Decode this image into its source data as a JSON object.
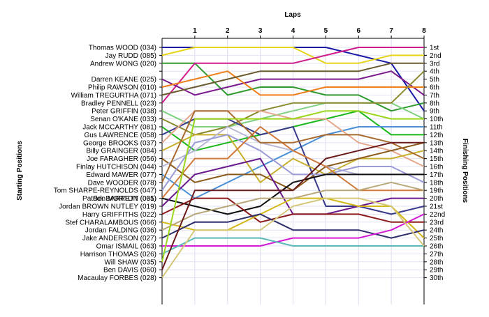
{
  "chart_data": {
    "type": "line",
    "title": "Laps",
    "ylabel_left": "Starting Positions",
    "ylabel_right": "Finishing Positions",
    "x": [
      0,
      1,
      2,
      3,
      4,
      5,
      6,
      7,
      8
    ],
    "x_tick_labels": [
      "1",
      "2",
      "3",
      "4",
      "5",
      "6",
      "7",
      "8"
    ],
    "finish_tick_labels": [
      "1st",
      "2nd",
      "3rd",
      "4th",
      "5th",
      "6th",
      "7th",
      "8th",
      "9th",
      "10th",
      "11th",
      "12th",
      "13th",
      "14th",
      "15th",
      "16th",
      "17th",
      "18th",
      "19th",
      "20th",
      "21st",
      "22nd",
      "23rd",
      "24th",
      "25th",
      "26th",
      "27th",
      "28th",
      "29th",
      "30th"
    ],
    "y_range": [
      1,
      30
    ],
    "grid": true,
    "series": [
      {
        "name": "Thomas WOOD (034)",
        "color": "#1a1aa6",
        "positions": [
          1,
          1,
          1,
          1,
          1,
          1,
          2,
          3,
          9
        ]
      },
      {
        "name": "Jay RUDD (085)",
        "color": "#e6d51a",
        "positions": [
          2,
          1,
          1,
          1,
          1,
          3,
          3,
          2,
          2
        ]
      },
      {
        "name": "Andrew WONG (020)",
        "color": "#2e9a2e",
        "positions": [
          3,
          3,
          7,
          6,
          6,
          7,
          7,
          9,
          8
        ]
      },
      {
        "name": "Bradley PENNELL (023)",
        "color": "#d11a8c",
        "positions": [
          8,
          3,
          3,
          3,
          3,
          2,
          1,
          1,
          1
        ]
      },
      {
        "name": "Darren KEANE (025)",
        "color": "#7a1a8c",
        "positions": [
          5,
          7,
          6,
          5,
          5,
          5,
          5,
          4,
          7
        ]
      },
      {
        "name": "Philip RAWSON (010)",
        "color": "#ee7f1a",
        "positions": [
          6,
          5,
          4,
          7,
          7,
          6,
          6,
          6,
          6
        ]
      },
      {
        "name": "William TREGURTHA (071)",
        "color": "#6b5a2e",
        "positions": [
          7,
          6,
          5,
          4,
          4,
          4,
          4,
          3,
          3
        ]
      },
      {
        "name": "Peter GRIFFIN (038)",
        "color": "#7fd07f",
        "positions": [
          9,
          11,
          11,
          10,
          9,
          8,
          8,
          8,
          10
        ]
      },
      {
        "name": "Senan O'KANE (033)",
        "color": "#8a8a2e",
        "positions": [
          10,
          12,
          11,
          9,
          8,
          8,
          8,
          8,
          4
        ]
      },
      {
        "name": "Jack MCCARTHY (081)",
        "color": "#1ab81a",
        "positions": [
          11,
          14,
          13,
          12,
          11,
          10,
          9,
          12,
          12
        ]
      },
      {
        "name": "Edward MAWER (077)",
        "color": "#4a90d6",
        "positions": [
          17,
          20,
          18,
          16,
          14,
          12,
          11,
          11,
          11
        ]
      },
      {
        "name": "Gus LAWRENCE (058)",
        "color": "#3a3a8c",
        "positions": [
          12,
          10,
          10,
          12,
          11,
          21,
          21,
          22,
          21
        ]
      },
      {
        "name": "George BROOKS (037)",
        "color": "#e6a88c",
        "positions": [
          13,
          9,
          9,
          9,
          10,
          10,
          13,
          14,
          16
        ]
      },
      {
        "name": "Billy GRAINGER (084)",
        "color": "#c8b02e",
        "positions": [
          14,
          12,
          12,
          18,
          15,
          17,
          15,
          15,
          14
        ]
      },
      {
        "name": "Joe FARAGHER (056)",
        "color": "#8c5a1a",
        "positions": [
          15,
          18,
          17,
          17,
          19,
          16,
          15,
          14,
          13
        ]
      },
      {
        "name": "Finlay HUTCHISON (044)",
        "color": "#b8b8d6",
        "positions": [
          16,
          14,
          11,
          13,
          14,
          16,
          17,
          17,
          17
        ]
      },
      {
        "name": "Tom SHARPE-REYNOLDS (047)",
        "color": "#9a9ad6",
        "positions": [
          19,
          13,
          12,
          14,
          17,
          17,
          16,
          16,
          18
        ]
      },
      {
        "name": "Patrick BARRETT (031)",
        "color": "#d07a3a",
        "positions": [
          20,
          15,
          15,
          11,
          14,
          16,
          19,
          19,
          19
        ]
      },
      {
        "name": "Dave WOODER (078)",
        "color": "#a86a2e",
        "positions": [
          18,
          9,
          9,
          13,
          13,
          12,
          12,
          13,
          15
        ]
      },
      {
        "name": "Ben MORTON (065)",
        "color": "#111111",
        "positions": [
          20,
          21,
          22,
          21,
          18,
          17,
          17,
          17,
          17
        ]
      },
      {
        "name": "Jordan BROWN NUTLEY (019)",
        "color": "#6a1a8c",
        "positions": [
          21,
          17,
          16,
          15,
          22,
          22,
          21,
          20,
          20
        ]
      },
      {
        "name": "Harry GRIFFITHS (022)",
        "color": "#8c1a1a",
        "positions": [
          22,
          20,
          20,
          23,
          22,
          22,
          22,
          23,
          23
        ]
      },
      {
        "name": "Stef CHARALAMBOUS (066)",
        "color": "#d4b81a",
        "positions": [
          23,
          24,
          24,
          22,
          20,
          20,
          21,
          21,
          25
        ]
      },
      {
        "name": "Jordan FALDING (036)",
        "color": "#b8a87a",
        "positions": [
          24,
          22,
          21,
          20,
          20,
          19,
          19,
          18,
          19
        ]
      },
      {
        "name": "Jake ANDERSON (027)",
        "color": "#2e2e6a",
        "positions": [
          25,
          23,
          23,
          22,
          24,
          24,
          24,
          25,
          24
        ]
      },
      {
        "name": "Omar ISMAIL (063)",
        "color": "#d41ad4",
        "positions": [
          26,
          26,
          26,
          26,
          25,
          25,
          25,
          24,
          22
        ]
      },
      {
        "name": "Harrison THOMAS (026)",
        "color": "#5ab8b8",
        "positions": [
          27,
          25,
          25,
          25,
          26,
          26,
          26,
          26,
          26
        ]
      },
      {
        "name": "Will SHAW (035)",
        "color": "#9ad61a",
        "positions": [
          28,
          10,
          10,
          10,
          10,
          9,
          9,
          10,
          10
        ]
      },
      {
        "name": "Ben DAVIS (060)",
        "color": "#6a1a1a",
        "positions": [
          29,
          19,
          19,
          19,
          19,
          15,
          14,
          13,
          13
        ]
      },
      {
        "name": "Macaulay FORBES (028)",
        "color": "#d6c87a",
        "positions": [
          30,
          24,
          24,
          24,
          21,
          20,
          20,
          21,
          26
        ]
      }
    ]
  }
}
